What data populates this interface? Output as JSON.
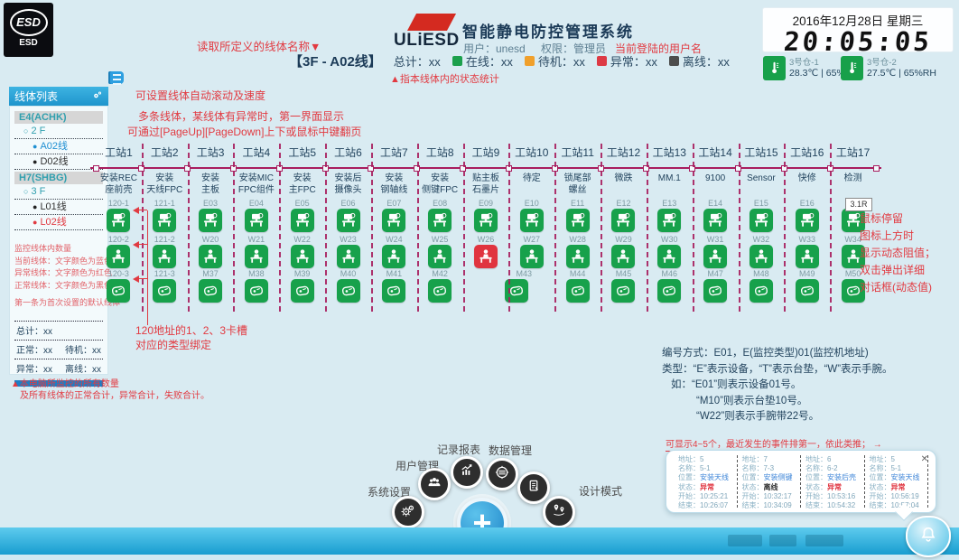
{
  "app": {
    "brand": "ULiESD",
    "system_title": "智能静电防控管理系统",
    "user": "用户：unesd",
    "role": "权限：管理员",
    "esd_badge": "ESD",
    "esd_badge_sub": "ESD",
    "plus_label": "+"
  },
  "clock": {
    "date": "2016年12月28日 星期三",
    "time": "20:05:05"
  },
  "sensors": [
    {
      "name": "3号仓-1",
      "reading": "28.3℃ | 65%RH"
    },
    {
      "name": "3号仓-2",
      "reading": "27.5℃ | 65%RH"
    }
  ],
  "line_status": {
    "line_title": "【3F - A02线】",
    "total": "总计：xx",
    "items": [
      {
        "label": "在线：xx",
        "color": "#1ca04c"
      },
      {
        "label": "待机：xx",
        "color": "#f0a02c"
      },
      {
        "label": "异常：xx",
        "color": "#dd3a45"
      },
      {
        "label": "离线：xx",
        "color": "#4d4d4d"
      }
    ]
  },
  "sidebar": {
    "header": "线体列表",
    "groups": [
      {
        "name": "E4(ACHK)",
        "floor": "2 F",
        "lines": [
          {
            "label": "A02线",
            "state": "current"
          },
          {
            "label": "D02线",
            "state": "normal"
          }
        ]
      },
      {
        "name": "H7(SHBG)",
        "floor": "3 F",
        "lines": [
          {
            "label": "L01线",
            "state": "normal"
          },
          {
            "label": "L02线",
            "state": "error"
          }
        ]
      }
    ],
    "notes": [
      "监控线体内数量",
      "当前线体：文字颜色为蓝色",
      "异常线体：文字颜色为红色",
      "正常线体：文字颜色为黑色",
      "第一条为首次设置的默认线体"
    ],
    "stats": {
      "total": "总计：xx",
      "normal": "正常：xx",
      "standby": "待机：xx",
      "error": "异常：xx",
      "offline": "离线：xx"
    },
    "bottom_note_1": "▲本电脑所监控的所有数量",
    "bottom_note_2": "及所有线体的正常合计，异常合计，失败合计。"
  },
  "annotations": {
    "read_line_name": "读取所定义的线体名称▼",
    "current_user": "当前登陆的用户名",
    "status_stat": "▲指本线体内的状态统计",
    "scroll": "可设置线体自动滚动及速度",
    "multi_1": "多条线体，某线体有异常时，第一界面显示",
    "multi_2": "可通过[PageUp][PageDown]上下或鼠标中键翻页",
    "slot_1": "120地址的1、2、3卡槽",
    "slot_2": "对应的类型绑定",
    "hover": [
      "鼠标停留",
      "图标上方时",
      "显示动态阻值；",
      "双击弹出详细",
      "对话框(动态值)"
    ],
    "popup_note": "可显示4~5个，最近发生的事件排第一，依此类推；",
    "popup_arrow": "→"
  },
  "tooltip_e17": "3.1R",
  "stations": [
    {
      "label": "工站1",
      "task": [
        "安装REC",
        "座前壳"
      ],
      "r1": "120-1",
      "r2": "120-2",
      "r3": "120-3"
    },
    {
      "label": "工站2",
      "task": [
        "安装",
        "天线FPC"
      ],
      "r1": "121-1",
      "r2": "121-2",
      "r3": "121-3"
    },
    {
      "label": "工站3",
      "task": [
        "安装",
        "主板"
      ],
      "r1": "E03",
      "r2": "W20",
      "r3": "M37"
    },
    {
      "label": "工站4",
      "task": [
        "安装MIC",
        "FPC组件"
      ],
      "r1": "E04",
      "r2": "W21",
      "r3": "M38"
    },
    {
      "label": "工站5",
      "task": [
        "安装",
        "主FPC"
      ],
      "r1": "E05",
      "r2": "W22",
      "r3": "M39"
    },
    {
      "label": "工站6",
      "task": [
        "安装后",
        "摄像头"
      ],
      "r1": "E06",
      "r2": "W23",
      "r3": "M40"
    },
    {
      "label": "工站7",
      "task": [
        "安装",
        "钢轴线"
      ],
      "r1": "E07",
      "r2": "W24",
      "r3": "M41"
    },
    {
      "label": "工站8",
      "task": [
        "安装",
        "侧键FPC"
      ],
      "r1": "E08",
      "r2": "W25",
      "r3": "M42"
    },
    {
      "label": "工站9",
      "task": [
        "贴主板",
        "石墨片"
      ],
      "r1": "E09",
      "r2": "W26",
      "r2_status": "alarm",
      "r3": null
    },
    {
      "label": "工站10",
      "task": [
        "待定",
        ""
      ],
      "r1": "E10",
      "r2": "W27",
      "r3": "M43",
      "r3_shift": true
    },
    {
      "label": "工站11",
      "task": [
        "锁尾部",
        "螺丝"
      ],
      "r1": "E11",
      "r2": "W28",
      "r3": "M44"
    },
    {
      "label": "工站12",
      "task": [
        "微跌",
        ""
      ],
      "r1": "E12",
      "r2": "W29",
      "r3": "M45"
    },
    {
      "label": "工站13",
      "task": [
        "MM.1",
        ""
      ],
      "r1": "E13",
      "r2": "W30",
      "r3": "M46"
    },
    {
      "label": "工站14",
      "task": [
        "9100",
        ""
      ],
      "r1": "E14",
      "r2": "W31",
      "r3": "M47"
    },
    {
      "label": "工站15",
      "task": [
        "Sensor",
        ""
      ],
      "r1": "E15",
      "r2": "W32",
      "r3": "M48"
    },
    {
      "label": "工站16",
      "task": [
        "快修",
        ""
      ],
      "r1": "E16",
      "r2": "W33",
      "r3": "M49"
    },
    {
      "label": "工站17",
      "task": [
        "检测",
        ""
      ],
      "r1": "E17",
      "r2": "W34",
      "r3": "M50"
    }
  ],
  "encoding": {
    "lines": [
      "编号方式：E01，E(监控类型)01(监控机地址)",
      "类型：“E”表示设备，“T”表示台垫，“W”表示手腕。",
      "如：“E01”则表示设备01号。",
      "“M10”则表示台垫10号。",
      "“W22”则表示手腕带22号。"
    ]
  },
  "menu": {
    "items": [
      {
        "label": "系统设置"
      },
      {
        "label": "用户管理"
      },
      {
        "label": "记录报表"
      },
      {
        "label": "数据管理"
      },
      {
        "label": "设计模式"
      }
    ]
  },
  "popup": {
    "close": "✕",
    "labels": {
      "addr": "地址：",
      "name": "名称：",
      "pos": "位置：",
      "status": "状态：",
      "start": "开始：",
      "end": "结束："
    },
    "events": [
      {
        "addr": "5",
        "name": "5-1",
        "pos": "安装天线",
        "status": "异常",
        "state": "alarm",
        "start": "10:25:21",
        "end": "10:26:07"
      },
      {
        "addr": "7",
        "name": "7-3",
        "pos": "安装侧键",
        "status": "离线",
        "state": "offline",
        "start": "10:32:17",
        "end": "10:34:09"
      },
      {
        "addr": "6",
        "name": "6-2",
        "pos": "安装后壳",
        "status": "异常",
        "state": "alarm",
        "start": "10:53:16",
        "end": "10:54:32"
      },
      {
        "addr": "5",
        "name": "5-1",
        "pos": "安装天线",
        "status": "异常",
        "state": "alarm",
        "start": "10:56:19",
        "end": "10:57:04"
      }
    ]
  }
}
